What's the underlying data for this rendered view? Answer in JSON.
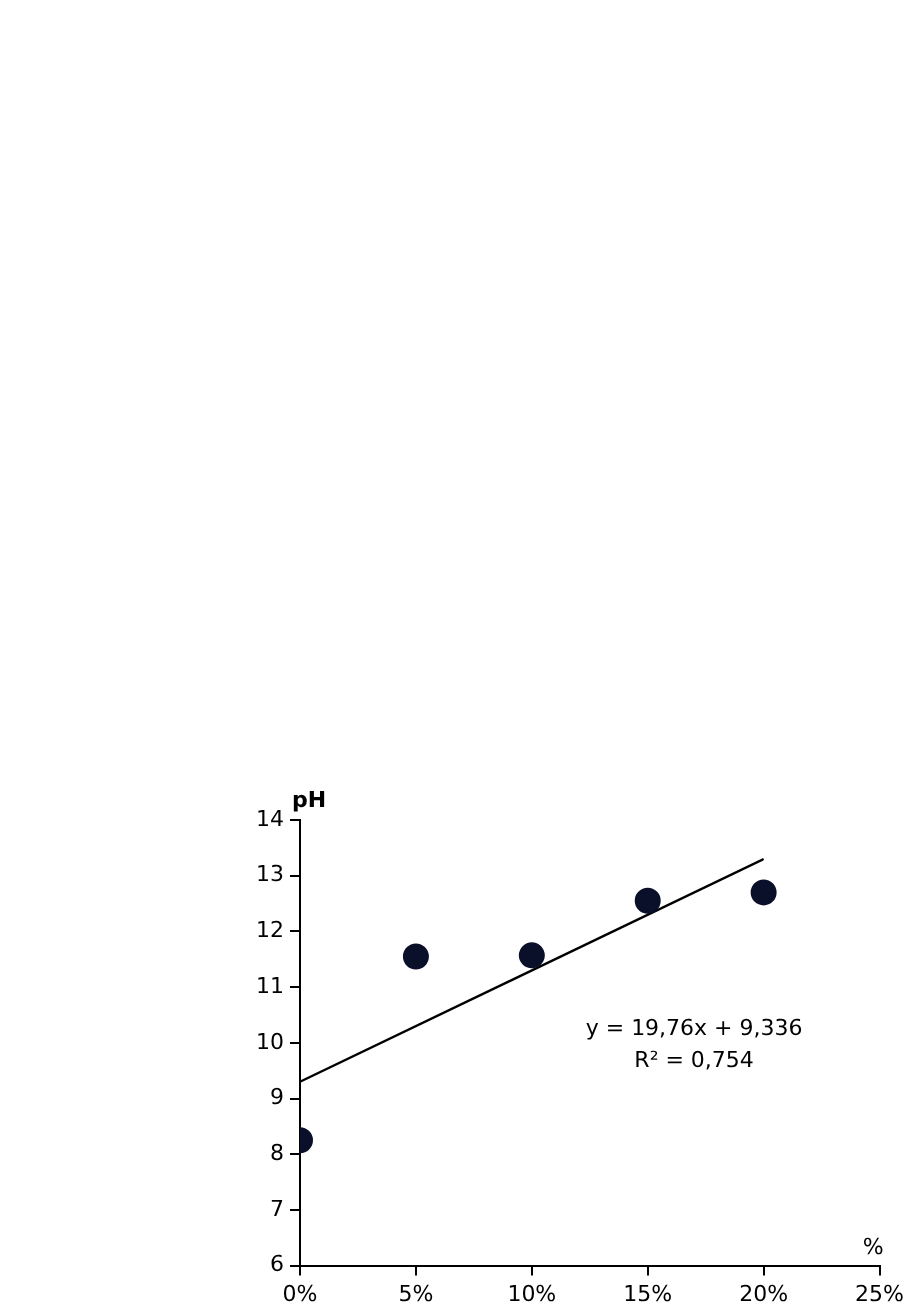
{
  "chart_data": {
    "type": "scatter",
    "xlabel": "%",
    "ylabel": "pH",
    "x": [
      0,
      0.05,
      0.1,
      0.15,
      0.2
    ],
    "series": [
      {
        "color": "#0a0f2a",
        "marker": "circle",
        "values": [
          8.25,
          11.55,
          11.57,
          12.55,
          12.7
        ]
      },
      {
        "type": "line",
        "color": "#000000",
        "marker": "none",
        "x": [
          0,
          0.2
        ],
        "values": [
          9.3,
          13.3
        ]
      }
    ],
    "xlim": [
      0,
      0.25
    ],
    "xticks": [
      {
        "value": 0,
        "label": "0%"
      },
      {
        "value": 0.05,
        "label": "5%"
      },
      {
        "value": 0.1,
        "label": "10%"
      },
      {
        "value": 0.15,
        "label": "15%"
      },
      {
        "value": 0.2,
        "label": "20%"
      },
      {
        "value": 0.25,
        "label": "25%"
      }
    ],
    "ylim": [
      6,
      14
    ],
    "yticks": [
      6,
      7,
      8,
      9,
      10,
      11,
      12,
      13,
      14
    ],
    "annotations": [
      "y = 19,76x + 9,336",
      "R² = 0,754"
    ],
    "grid": false,
    "legend": false
  }
}
